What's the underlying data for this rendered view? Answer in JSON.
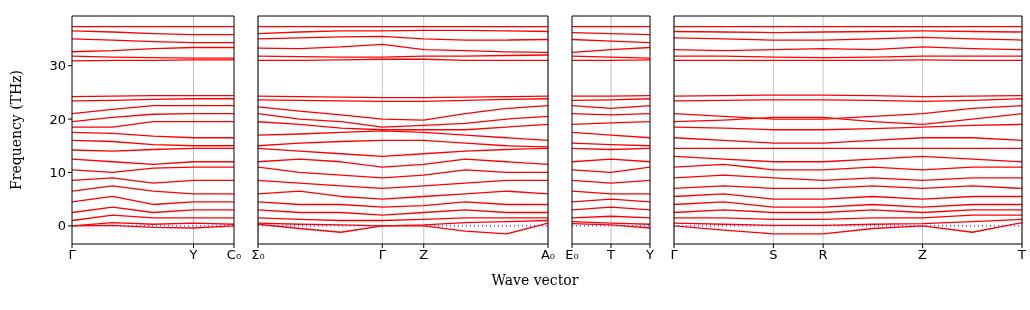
{
  "chart_data": [
    {
      "type": "line",
      "ylabel": "Frequency (THz)",
      "categories": [
        "Γ",
        null,
        null,
        "Y",
        "C₀"
      ],
      "ylim": [
        -3.4,
        39.3
      ],
      "yticks": [
        0,
        10,
        20,
        30
      ],
      "ref_lines": [
        {
          "axis": "y",
          "value": 0,
          "color": "#0000ff",
          "line_style": "dotted"
        },
        {
          "axis": "x",
          "value": "Y",
          "color": "#bbbbbb"
        }
      ],
      "series": [
        {
          "color": "#ff0000",
          "values": [
            37.3,
            37.3,
            37.3,
            37.3,
            37.3
          ]
        },
        {
          "color": "#ff0000",
          "values": [
            36.5,
            36.3,
            36.0,
            35.8,
            35.8
          ]
        },
        {
          "color": "#ff0000",
          "values": [
            35.0,
            34.8,
            34.5,
            34.3,
            34.3
          ]
        },
        {
          "color": "#ff0000",
          "values": [
            32.6,
            32.8,
            33.2,
            33.4,
            33.4
          ]
        },
        {
          "color": "#ff0000",
          "values": [
            31.8,
            31.6,
            31.5,
            31.4,
            31.4
          ]
        },
        {
          "color": "#ff0000",
          "values": [
            30.9,
            31.0,
            31.0,
            31.1,
            31.1
          ]
        },
        {
          "color": "#ff0000",
          "values": [
            24.2,
            24.3,
            24.4,
            24.4,
            24.4
          ]
        },
        {
          "color": "#ff0000",
          "values": [
            23.4,
            23.5,
            23.7,
            23.8,
            23.8
          ]
        },
        {
          "color": "#ff0000",
          "values": [
            21.0,
            21.8,
            22.5,
            22.5,
            22.5
          ]
        },
        {
          "color": "#ff0000",
          "values": [
            19.5,
            20.3,
            20.9,
            21.0,
            21.0
          ]
        },
        {
          "color": "#ff0000",
          "values": [
            18.5,
            18.5,
            19.5,
            19.5,
            19.5
          ]
        },
        {
          "color": "#ff0000",
          "values": [
            17.5,
            17.3,
            16.8,
            16.5,
            16.5
          ]
        },
        {
          "color": "#ff0000",
          "values": [
            16.0,
            15.8,
            15.2,
            15.0,
            15.0
          ]
        },
        {
          "color": "#ff0000",
          "values": [
            14.2,
            14.0,
            14.3,
            14.5,
            14.5
          ]
        },
        {
          "color": "#ff0000",
          "values": [
            12.5,
            12.0,
            11.5,
            12.0,
            12.0
          ]
        },
        {
          "color": "#ff0000",
          "values": [
            10.5,
            10.0,
            10.8,
            11.0,
            11.0
          ]
        },
        {
          "color": "#ff0000",
          "values": [
            8.5,
            9.0,
            8.0,
            8.5,
            8.5
          ]
        },
        {
          "color": "#ff0000",
          "values": [
            6.5,
            7.5,
            6.5,
            6.0,
            6.0
          ]
        },
        {
          "color": "#ff0000",
          "values": [
            4.5,
            5.5,
            4.0,
            4.5,
            4.5
          ]
        },
        {
          "color": "#ff0000",
          "values": [
            2.5,
            3.5,
            2.5,
            3.0,
            3.0
          ]
        },
        {
          "color": "#ff0000",
          "values": [
            1.0,
            2.0,
            1.5,
            1.5,
            1.5
          ]
        },
        {
          "color": "#ff0000",
          "values": [
            0,
            0.6,
            0.3,
            0.5,
            0.3
          ]
        },
        {
          "color": "#ff0000",
          "values": [
            0,
            0.1,
            -0.3,
            -0.4,
            0
          ]
        }
      ]
    },
    {
      "type": "line",
      "xlabel": "Wave vector",
      "tick_labels": "x",
      "categories": [
        "Σ₀",
        null,
        null,
        "Γ",
        "Z",
        null,
        null,
        "A₀"
      ],
      "ylim": [
        -3.4,
        39.3
      ],
      "yticks": [
        0,
        10,
        20,
        30
      ],
      "grid": "x",
      "ref_lines": [
        {
          "axis": "y",
          "value": 0,
          "color": "#0000ff",
          "line_style": "dotted"
        }
      ],
      "series": [
        {
          "color": "#ff0000",
          "values": [
            37.3,
            37.3,
            37.3,
            37.3,
            37.3,
            37.3,
            37.3,
            37.3
          ]
        },
        {
          "color": "#ff0000",
          "values": [
            36.0,
            36.3,
            36.5,
            36.5,
            36.6,
            36.6,
            36.5,
            36.4
          ]
        },
        {
          "color": "#ff0000",
          "values": [
            35.0,
            35.2,
            35.4,
            35.5,
            35.0,
            34.8,
            34.8,
            34.9
          ]
        },
        {
          "color": "#ff0000",
          "values": [
            33.3,
            33.2,
            33.5,
            34.0,
            33.0,
            32.8,
            32.6,
            32.5
          ]
        },
        {
          "color": "#ff0000",
          "values": [
            31.8,
            31.7,
            31.6,
            31.6,
            31.8,
            31.8,
            31.9,
            32.0
          ]
        },
        {
          "color": "#ff0000",
          "values": [
            31.0,
            31.0,
            31.1,
            31.2,
            31.2,
            31.0,
            31.0,
            31.0
          ]
        },
        {
          "color": "#ff0000",
          "values": [
            24.3,
            24.2,
            24.1,
            24.0,
            24.0,
            24.1,
            24.2,
            24.3
          ]
        },
        {
          "color": "#ff0000",
          "values": [
            23.6,
            23.5,
            23.4,
            23.3,
            23.3,
            23.5,
            23.7,
            23.8
          ]
        },
        {
          "color": "#ff0000",
          "values": [
            22.3,
            21.5,
            20.8,
            20.0,
            19.8,
            21.0,
            22.0,
            22.5
          ]
        },
        {
          "color": "#ff0000",
          "values": [
            21.0,
            20.0,
            19.5,
            18.5,
            18.8,
            19.2,
            20.0,
            20.5
          ]
        },
        {
          "color": "#ff0000",
          "values": [
            19.5,
            19.0,
            18.3,
            18.0,
            18.0,
            18.0,
            18.5,
            19.0
          ]
        },
        {
          "color": "#ff0000",
          "values": [
            17.0,
            17.2,
            17.5,
            17.8,
            17.5,
            17.0,
            16.5,
            16.0
          ]
        },
        {
          "color": "#ff0000",
          "values": [
            15.0,
            15.5,
            15.8,
            16.0,
            16.0,
            15.5,
            15.0,
            14.8
          ]
        },
        {
          "color": "#ff0000",
          "values": [
            14.5,
            14.0,
            13.5,
            13.0,
            13.5,
            14.0,
            14.3,
            14.5
          ]
        },
        {
          "color": "#ff0000",
          "values": [
            12.0,
            12.5,
            12.0,
            11.0,
            11.5,
            12.5,
            12.0,
            11.5
          ]
        },
        {
          "color": "#ff0000",
          "values": [
            11.0,
            10.0,
            9.5,
            9.0,
            9.5,
            10.5,
            10.0,
            10.0
          ]
        },
        {
          "color": "#ff0000",
          "values": [
            8.5,
            8.0,
            7.5,
            7.0,
            7.5,
            8.0,
            8.5,
            8.5
          ]
        },
        {
          "color": "#ff0000",
          "values": [
            6.0,
            6.5,
            5.5,
            5.0,
            5.5,
            6.0,
            6.5,
            6.0
          ]
        },
        {
          "color": "#ff0000",
          "values": [
            4.5,
            4.0,
            4.0,
            3.5,
            3.8,
            4.5,
            4.0,
            4.0
          ]
        },
        {
          "color": "#ff0000",
          "values": [
            3.0,
            2.5,
            2.5,
            2.0,
            2.5,
            3.0,
            2.5,
            2.5
          ]
        },
        {
          "color": "#ff0000",
          "values": [
            1.5,
            1.2,
            1.0,
            1.0,
            1.2,
            1.5,
            1.5,
            1.5
          ]
        },
        {
          "color": "#ff0000",
          "values": [
            0.5,
            0.3,
            0.2,
            0,
            0.2,
            0.6,
            0.8,
            1.0
          ]
        },
        {
          "color": "#ff0000",
          "values": [
            0.3,
            -0.5,
            -1.2,
            0,
            0,
            -1.0,
            -1.5,
            0.5
          ]
        }
      ]
    },
    {
      "type": "line",
      "tick_labels": "x",
      "categories": [
        "E₀",
        "T",
        "Y"
      ],
      "ylim": [
        -3.4,
        39.3
      ],
      "yticks": [
        0,
        10,
        20,
        30
      ],
      "ref_lines": [
        {
          "axis": "y",
          "value": 0,
          "color": "#0000ff",
          "line_style": "dotted"
        },
        {
          "axis": "x",
          "value": "T",
          "color": "#bbbbbb"
        }
      ],
      "series": [
        {
          "color": "#ff0000",
          "values": [
            37.3,
            37.3,
            37.3
          ]
        },
        {
          "color": "#ff0000",
          "values": [
            36.2,
            36.0,
            35.8
          ]
        },
        {
          "color": "#ff0000",
          "values": [
            34.9,
            34.6,
            34.3
          ]
        },
        {
          "color": "#ff0000",
          "values": [
            32.5,
            33.0,
            33.4
          ]
        },
        {
          "color": "#ff0000",
          "values": [
            31.8,
            31.6,
            31.4
          ]
        },
        {
          "color": "#ff0000",
          "values": [
            31.0,
            31.0,
            31.1
          ]
        },
        {
          "color": "#ff0000",
          "values": [
            24.3,
            24.3,
            24.4
          ]
        },
        {
          "color": "#ff0000",
          "values": [
            23.5,
            23.6,
            23.8
          ]
        },
        {
          "color": "#ff0000",
          "values": [
            22.5,
            22.0,
            22.5
          ]
        },
        {
          "color": "#ff0000",
          "values": [
            21.0,
            20.8,
            21.0
          ]
        },
        {
          "color": "#ff0000",
          "values": [
            19.0,
            19.3,
            19.5
          ]
        },
        {
          "color": "#ff0000",
          "values": [
            17.5,
            17.0,
            16.5
          ]
        },
        {
          "color": "#ff0000",
          "values": [
            15.5,
            15.2,
            15.0
          ]
        },
        {
          "color": "#ff0000",
          "values": [
            14.5,
            14.3,
            14.5
          ]
        },
        {
          "color": "#ff0000",
          "values": [
            12.0,
            12.5,
            12.0
          ]
        },
        {
          "color": "#ff0000",
          "values": [
            10.5,
            10.0,
            11.0
          ]
        },
        {
          "color": "#ff0000",
          "values": [
            8.5,
            8.0,
            8.5
          ]
        },
        {
          "color": "#ff0000",
          "values": [
            6.5,
            6.0,
            6.0
          ]
        },
        {
          "color": "#ff0000",
          "values": [
            4.5,
            5.0,
            4.5
          ]
        },
        {
          "color": "#ff0000",
          "values": [
            3.0,
            3.5,
            3.0
          ]
        },
        {
          "color": "#ff0000",
          "values": [
            1.5,
            1.8,
            1.5
          ]
        },
        {
          "color": "#ff0000",
          "values": [
            0.8,
            0.5,
            0.3
          ]
        },
        {
          "color": "#ff0000",
          "values": [
            0.4,
            0.2,
            -0.4
          ]
        }
      ]
    },
    {
      "type": "line",
      "tick_labels": "x",
      "categories": [
        "Γ",
        null,
        "S",
        "R",
        null,
        "Z",
        null,
        "T"
      ],
      "ylim": [
        -3.4,
        39.3
      ],
      "yticks": [
        0,
        10,
        20,
        30
      ],
      "grid": "x",
      "ref_lines": [
        {
          "axis": "y",
          "value": 0,
          "color": "#0000ff",
          "line_style": "dotted"
        }
      ],
      "series": [
        {
          "color": "#ff0000",
          "values": [
            37.3,
            37.3,
            37.3,
            37.3,
            37.3,
            37.3,
            37.3,
            37.3
          ]
        },
        {
          "color": "#ff0000",
          "values": [
            36.4,
            36.3,
            36.2,
            36.3,
            36.4,
            36.5,
            36.4,
            36.3
          ]
        },
        {
          "color": "#ff0000",
          "values": [
            35.2,
            35.0,
            34.8,
            34.8,
            35.0,
            35.3,
            35.0,
            34.8
          ]
        },
        {
          "color": "#ff0000",
          "values": [
            33.0,
            32.8,
            33.0,
            33.2,
            33.0,
            33.5,
            33.2,
            33.0
          ]
        },
        {
          "color": "#ff0000",
          "values": [
            31.8,
            31.8,
            31.6,
            31.5,
            31.6,
            31.8,
            31.8,
            31.8
          ]
        },
        {
          "color": "#ff0000",
          "values": [
            31.0,
            31.0,
            31.0,
            31.0,
            31.0,
            31.1,
            31.0,
            31.0
          ]
        },
        {
          "color": "#ff0000",
          "values": [
            24.3,
            24.4,
            24.5,
            24.5,
            24.4,
            24.2,
            24.3,
            24.4
          ]
        },
        {
          "color": "#ff0000",
          "values": [
            23.4,
            23.5,
            23.6,
            23.6,
            23.5,
            23.3,
            23.5,
            23.8
          ]
        },
        {
          "color": "#ff0000",
          "values": [
            21.0,
            20.5,
            20.0,
            20.0,
            20.5,
            21.0,
            22.0,
            22.5
          ]
        },
        {
          "color": "#ff0000",
          "values": [
            19.5,
            19.8,
            20.3,
            20.3,
            19.5,
            19.0,
            20.0,
            21.0
          ]
        },
        {
          "color": "#ff0000",
          "values": [
            18.5,
            18.3,
            18.0,
            18.0,
            18.2,
            18.5,
            18.8,
            19.0
          ]
        },
        {
          "color": "#ff0000",
          "values": [
            16.5,
            16.0,
            15.5,
            15.5,
            16.0,
            16.5,
            16.5,
            16.0
          ]
        },
        {
          "color": "#ff0000",
          "values": [
            14.5,
            14.5,
            14.5,
            14.5,
            14.5,
            14.5,
            14.5,
            14.5
          ]
        },
        {
          "color": "#ff0000",
          "values": [
            13.0,
            12.5,
            12.0,
            12.0,
            12.5,
            13.0,
            12.5,
            12.0
          ]
        },
        {
          "color": "#ff0000",
          "values": [
            11.0,
            11.5,
            10.5,
            10.5,
            11.0,
            10.5,
            11.0,
            11.0
          ]
        },
        {
          "color": "#ff0000",
          "values": [
            9.0,
            9.5,
            9.0,
            8.5,
            9.0,
            8.5,
            9.0,
            9.0
          ]
        },
        {
          "color": "#ff0000",
          "values": [
            7.0,
            7.5,
            7.0,
            7.0,
            7.5,
            7.0,
            7.5,
            7.0
          ]
        },
        {
          "color": "#ff0000",
          "values": [
            5.5,
            6.0,
            5.0,
            5.0,
            5.5,
            5.0,
            5.5,
            5.5
          ]
        },
        {
          "color": "#ff0000",
          "values": [
            4.0,
            4.5,
            3.5,
            3.5,
            4.0,
            3.5,
            4.0,
            4.0
          ]
        },
        {
          "color": "#ff0000",
          "values": [
            2.5,
            3.0,
            2.5,
            2.5,
            3.0,
            2.5,
            3.0,
            3.0
          ]
        },
        {
          "color": "#ff0000",
          "values": [
            1.5,
            1.5,
            1.2,
            1.2,
            1.5,
            1.5,
            2.0,
            2.0
          ]
        },
        {
          "color": "#ff0000",
          "values": [
            0.5,
            0.3,
            0.1,
            0.1,
            0.3,
            0.4,
            0.8,
            1.2
          ]
        },
        {
          "color": "#ff0000",
          "values": [
            0,
            -0.8,
            -1.5,
            -1.5,
            -0.5,
            0,
            -1.2,
            0.6
          ]
        }
      ]
    }
  ]
}
